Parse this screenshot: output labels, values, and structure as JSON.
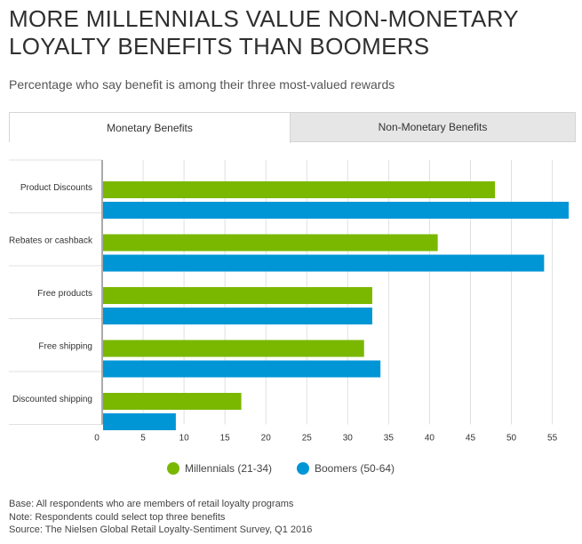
{
  "title_line1": "MORE MILLENNIALS VALUE NON-MONETARY",
  "title_line2": "LOYALTY BENEFITS THAN BOOMERS",
  "subtitle": "Percentage who say benefit is among their three most-valued rewards",
  "tabs": [
    {
      "label": "Monetary Benefits",
      "active": true
    },
    {
      "label": "Non-Monetary Benefits",
      "active": false
    }
  ],
  "colors": {
    "millennials": "#7ab800",
    "boomers": "#0096d6",
    "grid": "#e0e0e0",
    "axis": "#555555"
  },
  "chart_data": {
    "type": "bar",
    "orientation": "horizontal",
    "categories": [
      "Product Discounts",
      "Rebates or cashback",
      "Free products",
      "Free shipping",
      "Discounted shipping"
    ],
    "series": [
      {
        "name": "Millennials (21-34)",
        "values": [
          48,
          41,
          33,
          32,
          17
        ]
      },
      {
        "name": "Boomers (50-64)",
        "values": [
          57,
          54,
          33,
          34,
          9
        ]
      }
    ],
    "xlim": [
      0,
      57
    ],
    "xticks": [
      0,
      5,
      10,
      15,
      20,
      25,
      30,
      35,
      40,
      45,
      50,
      55
    ],
    "grid": true,
    "legend": "bottom-center"
  },
  "legend": [
    {
      "label": "Millennials (21-34)"
    },
    {
      "label": "Boomers (50-64)"
    }
  ],
  "notes": [
    "Base: All respondents who are members of retail loyalty programs",
    "Note: Respondents could select top three benefits",
    "Source: The Nielsen Global Retail Loyalty-Sentiment Survey, Q1 2016"
  ]
}
